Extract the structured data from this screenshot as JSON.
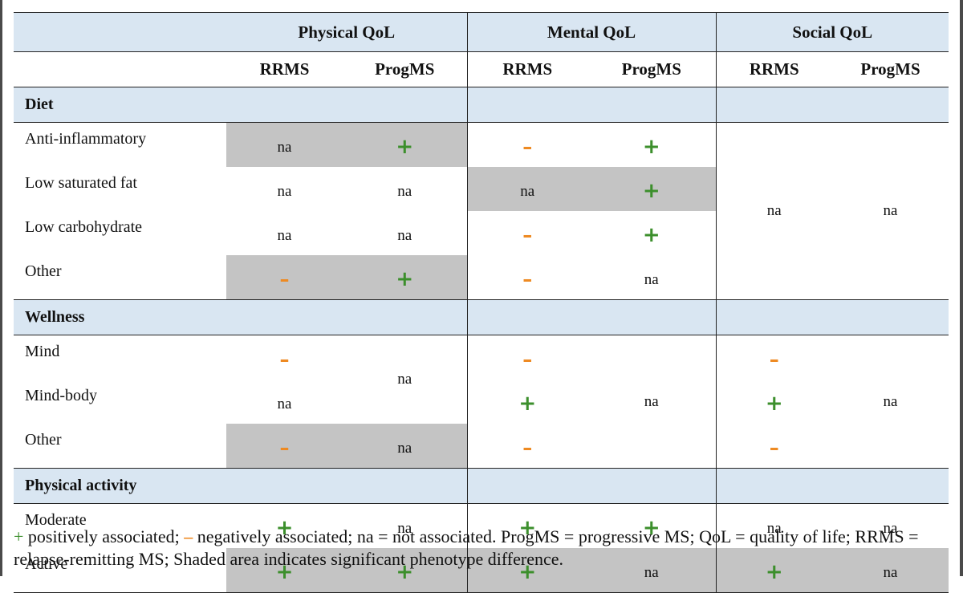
{
  "header": {
    "groups": [
      "Physical QoL",
      "Mental QoL",
      "Social QoL"
    ],
    "subheaders": [
      "RRMS",
      "ProgMS",
      "RRMS",
      "ProgMS",
      "RRMS",
      "ProgMS"
    ]
  },
  "sections": {
    "diet": "Diet",
    "wellness": "Wellness",
    "activity": "Physical activity"
  },
  "rows": {
    "anti": "Anti-inflammatory",
    "lowsat": "Low saturated fat",
    "lowcarb": "Low carbohydrate",
    "diet_other": "Other",
    "mind": "Mind",
    "mindbody": "Mind-body",
    "well_other": "Other",
    "moderate": "Moderate",
    "active": "Active"
  },
  "symbols": {
    "plus": "+",
    "minus": "–",
    "na": "na"
  },
  "colors": {
    "header_band": "#d9e6f2",
    "shade": "#c4c4c4",
    "positive": "#3c8f2c",
    "negative": "#ee8a22"
  },
  "footnote": {
    "plus": "+",
    "text1": " positively associated; ",
    "minus": "–",
    "text2": " negatively associated; na = not associated. ProgMS = progressive MS; QoL = quality of life; RRMS = relapse-remitting MS; Shaded area indicates significant phenotype difference."
  }
}
